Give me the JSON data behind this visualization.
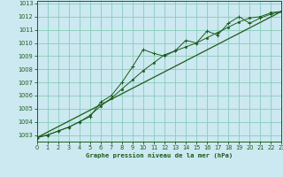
{
  "title": "Graphe pression niveau de la mer (hPa)",
  "bg_color": "#cce8f0",
  "grid_color": "#88ccbb",
  "line_color": "#1a5c1a",
  "x_min": 0,
  "x_max": 23,
  "y_min": 1002.5,
  "y_max": 1013.2,
  "yticks": [
    1003,
    1004,
    1005,
    1006,
    1007,
    1008,
    1009,
    1010,
    1011,
    1012,
    1013
  ],
  "xticks": [
    0,
    1,
    2,
    3,
    4,
    5,
    6,
    7,
    8,
    9,
    10,
    11,
    12,
    13,
    14,
    15,
    16,
    17,
    18,
    19,
    20,
    21,
    22,
    23
  ],
  "line1_x": [
    0,
    1,
    2,
    3,
    4,
    5,
    6,
    7,
    8,
    9,
    10,
    11,
    12,
    13,
    14,
    15,
    16,
    17,
    18,
    19,
    20,
    21,
    22,
    23
  ],
  "line1_y": [
    1002.8,
    1003.0,
    1003.3,
    1003.6,
    1004.0,
    1004.4,
    1005.5,
    1006.0,
    1007.0,
    1008.2,
    1009.5,
    1009.2,
    1009.0,
    1009.4,
    1010.2,
    1010.0,
    1010.9,
    1010.6,
    1011.5,
    1012.0,
    1011.5,
    1011.9,
    1012.2,
    1012.4
  ],
  "line2_x": [
    0,
    1,
    2,
    3,
    4,
    5,
    6,
    7,
    8,
    9,
    10,
    11,
    12,
    13,
    14,
    15,
    16,
    17,
    18,
    19,
    20,
    21,
    22,
    23
  ],
  "line2_y": [
    1002.8,
    1003.0,
    1003.3,
    1003.6,
    1004.0,
    1004.5,
    1005.2,
    1005.8,
    1006.5,
    1007.2,
    1007.9,
    1008.5,
    1009.1,
    1009.4,
    1009.7,
    1010.0,
    1010.4,
    1010.8,
    1011.2,
    1011.6,
    1011.9,
    1012.0,
    1012.3,
    1012.4
  ],
  "line3_x": [
    0,
    23
  ],
  "line3_y": [
    1002.8,
    1012.4
  ]
}
